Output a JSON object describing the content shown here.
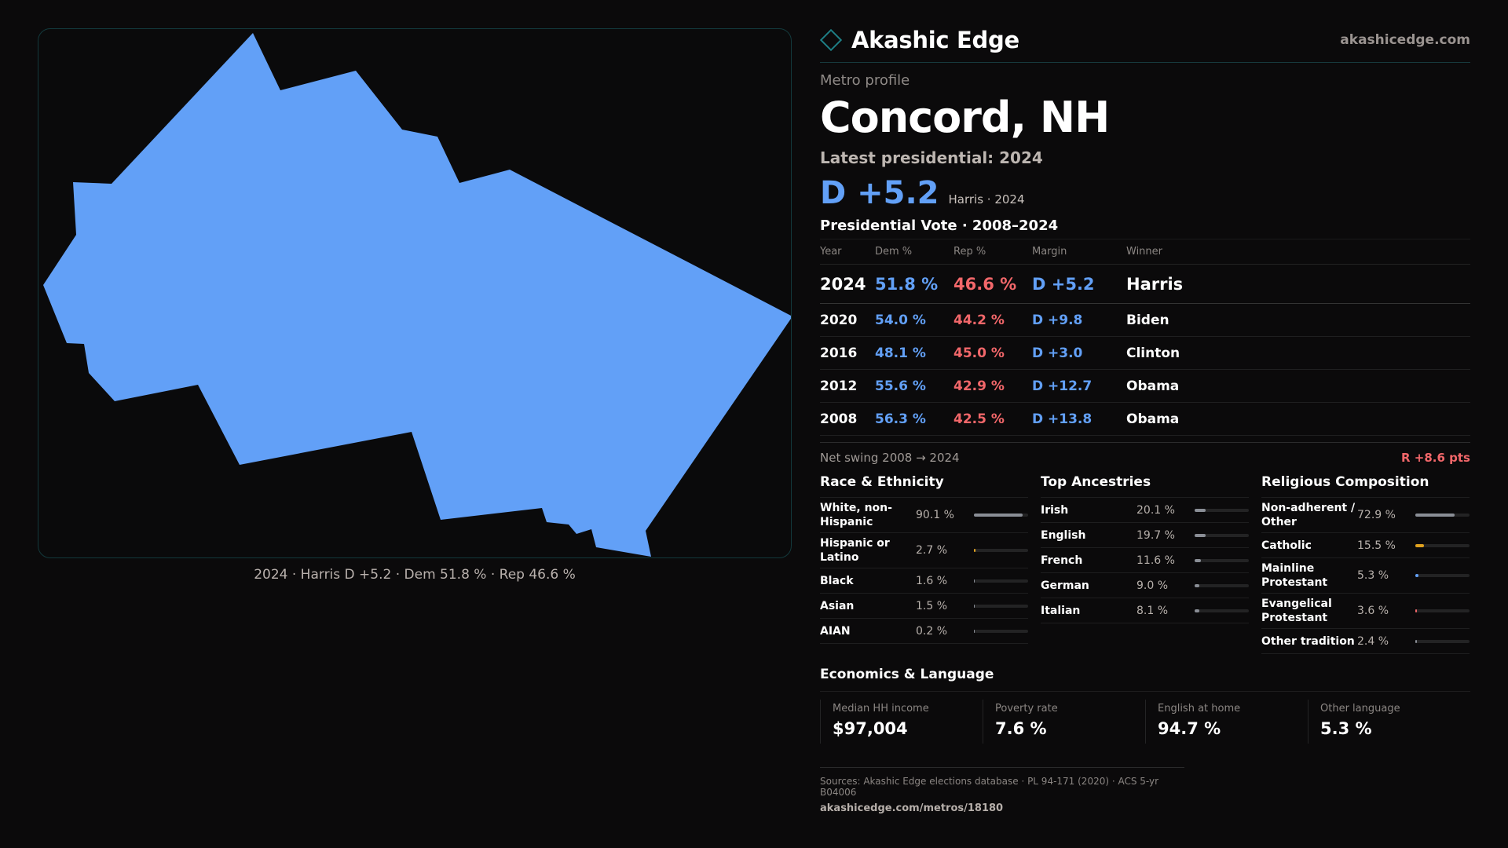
{
  "map": {
    "fill_color": "#62a0f7",
    "border_color": "#13393c",
    "caption": "2024 · Harris D +5.2 · Dem 51.8 % · Rep 46.6 %"
  },
  "brand": {
    "logo_icon": "diamond-icon",
    "name": "Akashic Edge",
    "site": "akashicedge.com"
  },
  "profile": {
    "eyebrow": "Metro profile",
    "city": "Concord, NH",
    "latest_label": "Latest presidential: 2024",
    "margin": "D +5.2",
    "margin_sub": "Harris · 2024"
  },
  "votes": {
    "title": "Presidential Vote · 2008–2024",
    "headers": [
      "Year",
      "Dem %",
      "Rep %",
      "Margin",
      "Winner"
    ],
    "rows": [
      {
        "year": "2024",
        "dem": "51.8 %",
        "rep": "46.6 %",
        "margin": "D +5.2",
        "winner": "Harris"
      },
      {
        "year": "2020",
        "dem": "54.0 %",
        "rep": "44.2 %",
        "margin": "D +9.8",
        "winner": "Biden"
      },
      {
        "year": "2016",
        "dem": "48.1 %",
        "rep": "45.0 %",
        "margin": "D +3.0",
        "winner": "Clinton"
      },
      {
        "year": "2012",
        "dem": "55.6 %",
        "rep": "42.9 %",
        "margin": "D +12.7",
        "winner": "Obama"
      },
      {
        "year": "2008",
        "dem": "56.3 %",
        "rep": "42.5 %",
        "margin": "D +13.8",
        "winner": "Obama"
      }
    ],
    "net_swing_label": "Net swing 2008 → 2024",
    "net_swing_value": "R +8.6 pts"
  },
  "race": {
    "title": "Race & Ethnicity",
    "items": [
      {
        "label": "White, non-Hispanic",
        "value": "90.1 %",
        "share": 0.901,
        "color": "#8a8e96"
      },
      {
        "label": "Hispanic or Latino",
        "value": "2.7 %",
        "share": 0.027,
        "color": "#e0a21f"
      },
      {
        "label": "Black",
        "value": "1.6 %",
        "share": 0.016,
        "color": "#8a8e96"
      },
      {
        "label": "Asian",
        "value": "1.5 %",
        "share": 0.015,
        "color": "#8a8e96"
      },
      {
        "label": "AIAN",
        "value": "0.2 %",
        "share": 0.002,
        "color": "#8a8e96"
      }
    ]
  },
  "ancestry": {
    "title": "Top Ancestries",
    "items": [
      {
        "label": "Irish",
        "value": "20.1 %",
        "share": 0.201,
        "color": "#8a8e96"
      },
      {
        "label": "English",
        "value": "19.7 %",
        "share": 0.197,
        "color": "#8a8e96"
      },
      {
        "label": "French",
        "value": "11.6 %",
        "share": 0.116,
        "color": "#8a8e96"
      },
      {
        "label": "German",
        "value": "9.0 %",
        "share": 0.09,
        "color": "#8a8e96"
      },
      {
        "label": "Italian",
        "value": "8.1 %",
        "share": 0.081,
        "color": "#8a8e96"
      }
    ]
  },
  "religion": {
    "title": "Religious Composition",
    "items": [
      {
        "label": "Non-adherent / Other",
        "value": "72.9 %",
        "share": 0.729,
        "color": "#8a8e96"
      },
      {
        "label": "Catholic",
        "value": "15.5 %",
        "share": 0.155,
        "color": "#e0a21f"
      },
      {
        "label": "Mainline Protestant",
        "value": "5.3 %",
        "share": 0.053,
        "color": "#62a0f7"
      },
      {
        "label": "Evangelical Protestant",
        "value": "3.6 %",
        "share": 0.036,
        "color": "#f2676a"
      },
      {
        "label": "Other tradition",
        "value": "2.4 %",
        "share": 0.024,
        "color": "#8a8e96"
      }
    ]
  },
  "economics": {
    "title": "Economics & Language",
    "cells": [
      {
        "label": "Median HH income",
        "value": "$97,004"
      },
      {
        "label": "Poverty rate",
        "value": "7.6 %"
      },
      {
        "label": "English at home",
        "value": "94.7 %"
      },
      {
        "label": "Other language",
        "value": "5.3 %"
      }
    ]
  },
  "sources": {
    "text": "Sources: Akashic Edge elections database · PL 94-171 (2020) · ACS 5-yr B04006",
    "link": "akashicedge.com/metros/18180"
  },
  "colors": {
    "dem": "#62a0f7",
    "rep": "#f2676a",
    "accent": "#1e7f86"
  }
}
